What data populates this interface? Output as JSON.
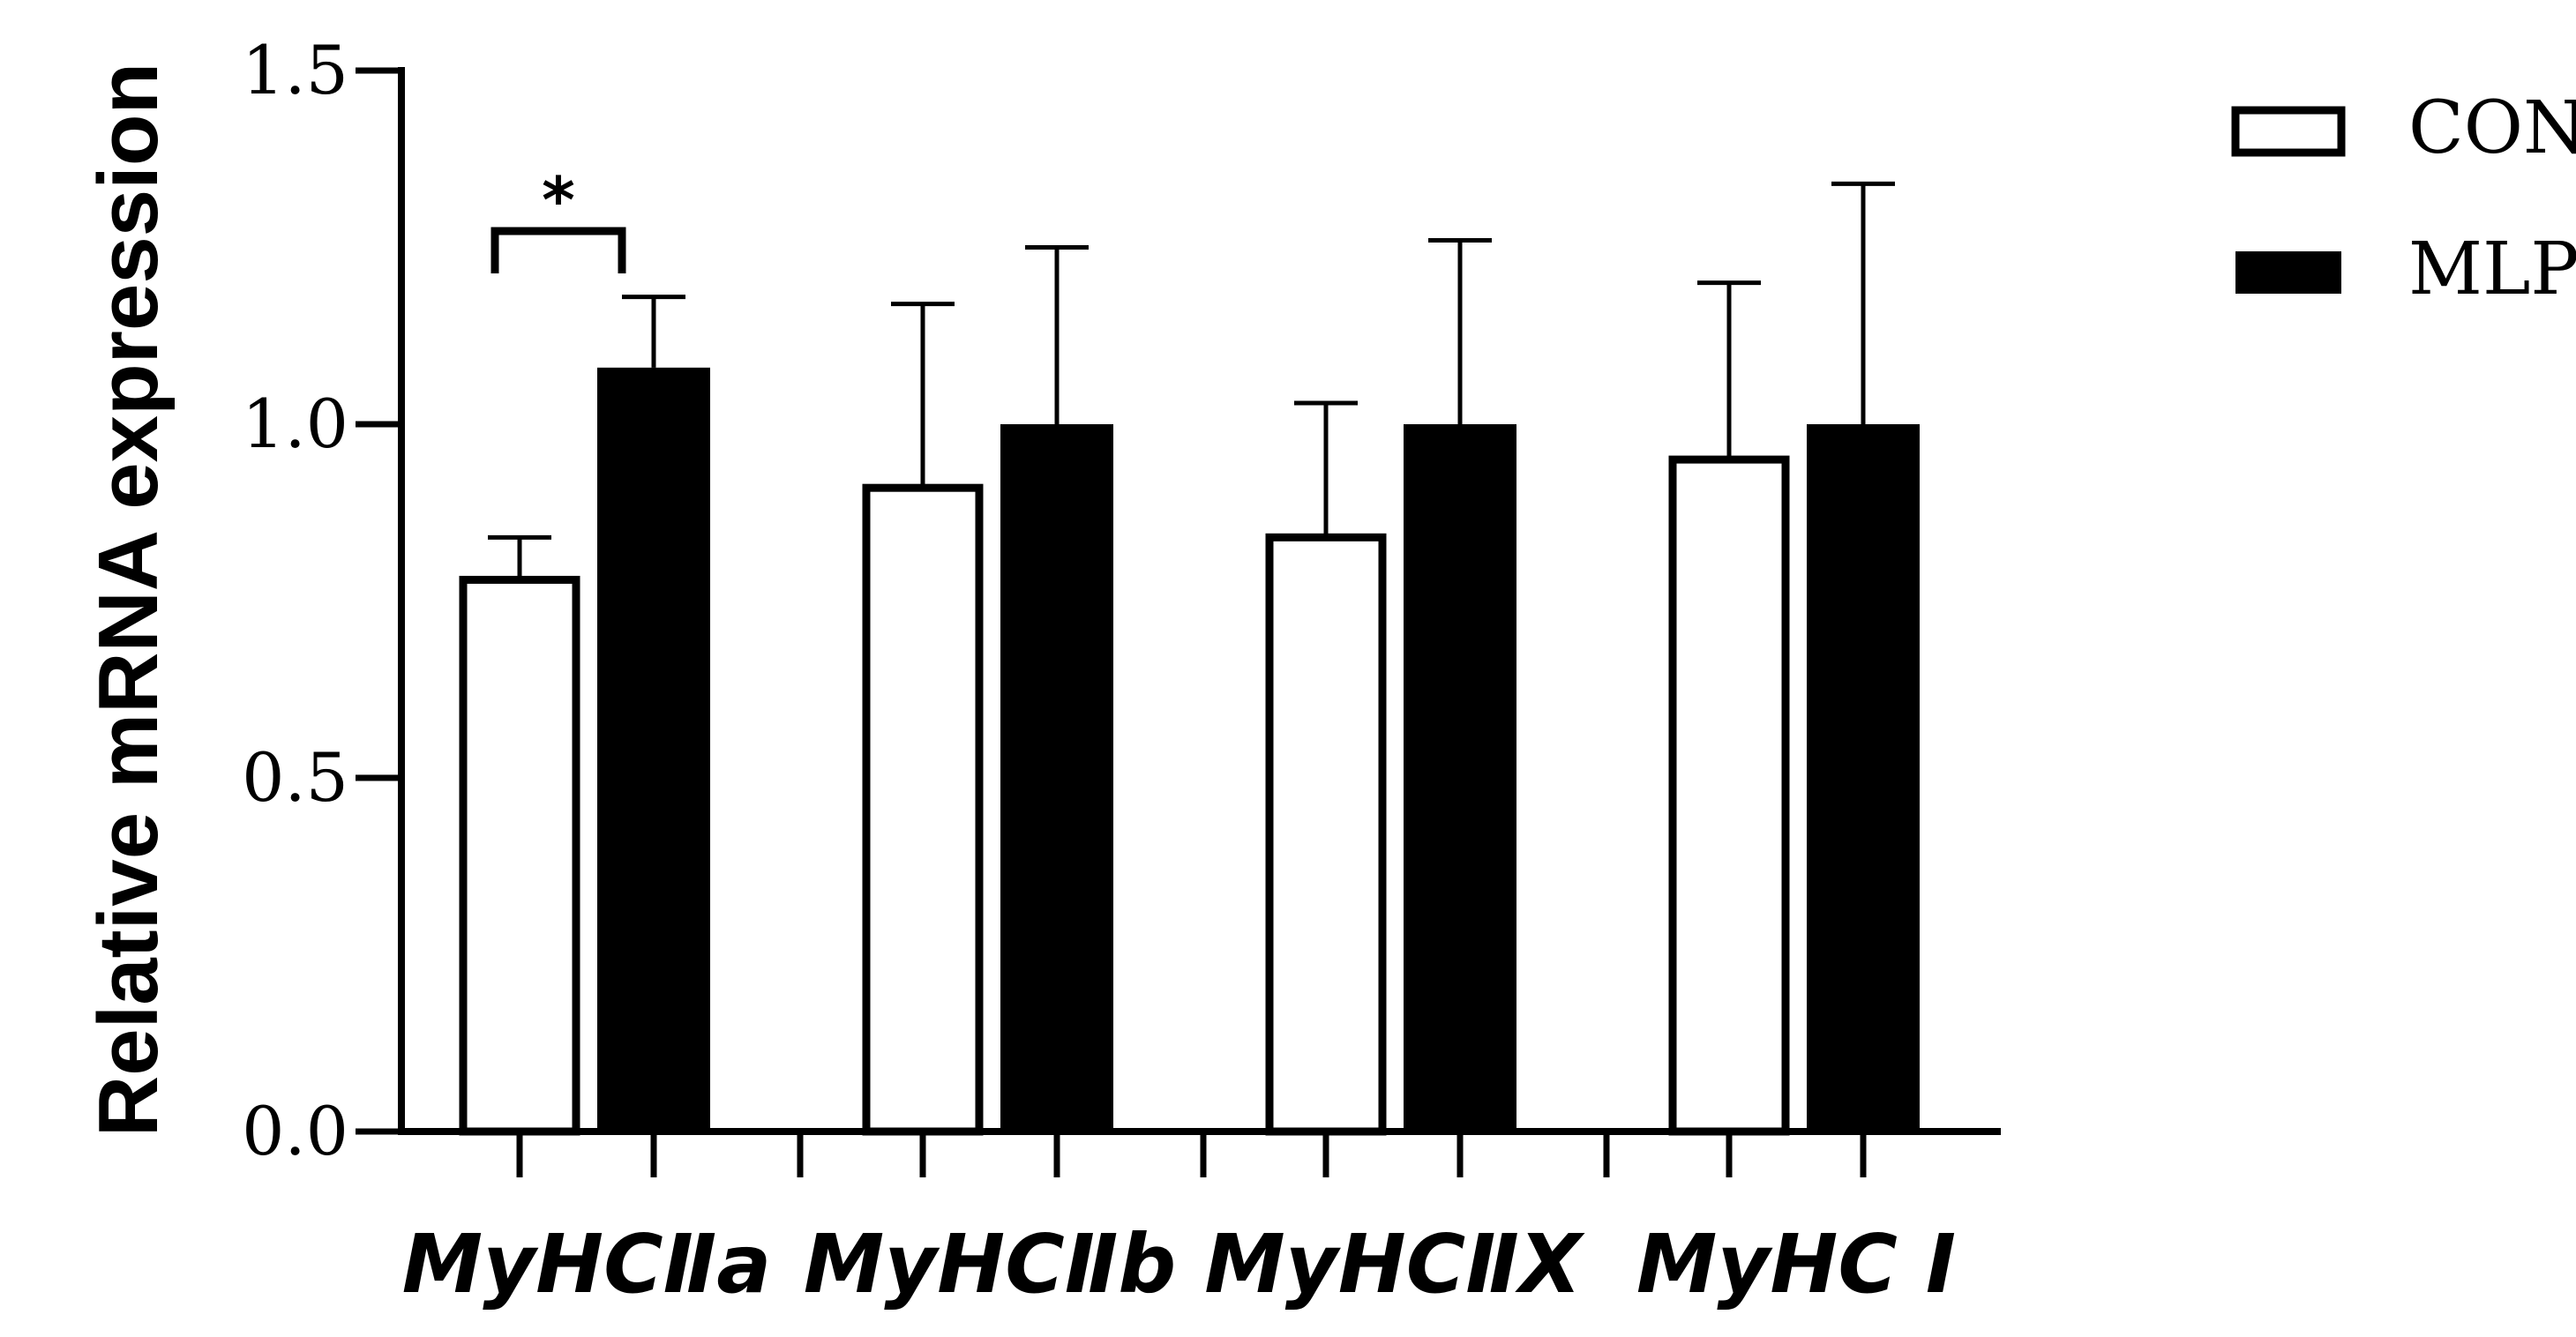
{
  "chart_data": {
    "type": "bar",
    "title": "",
    "xlabel": "",
    "ylabel": "Relative mRNA expression",
    "ylim": [
      0,
      1.5
    ],
    "yticks": [
      "0.0",
      "0.5",
      "1.0",
      "1.5"
    ],
    "categories": [
      "MyHCⅡa",
      "MyHCⅡb",
      "MyHCⅡX",
      "MyHC Ⅰ"
    ],
    "series": [
      {
        "name": "CON",
        "fill": "#ffffff",
        "values": [
          0.78,
          0.91,
          0.84,
          0.95
        ],
        "errors": [
          0.06,
          0.26,
          0.19,
          0.25
        ]
      },
      {
        "name": "MLP",
        "fill": "#000000",
        "values": [
          1.08,
          1.0,
          1.0,
          1.0
        ],
        "errors": [
          0.1,
          0.25,
          0.26,
          0.34
        ]
      }
    ],
    "annotations": [
      {
        "text": "*",
        "category": "MyHCⅡa"
      }
    ],
    "legend": "top-right",
    "grid": false
  }
}
